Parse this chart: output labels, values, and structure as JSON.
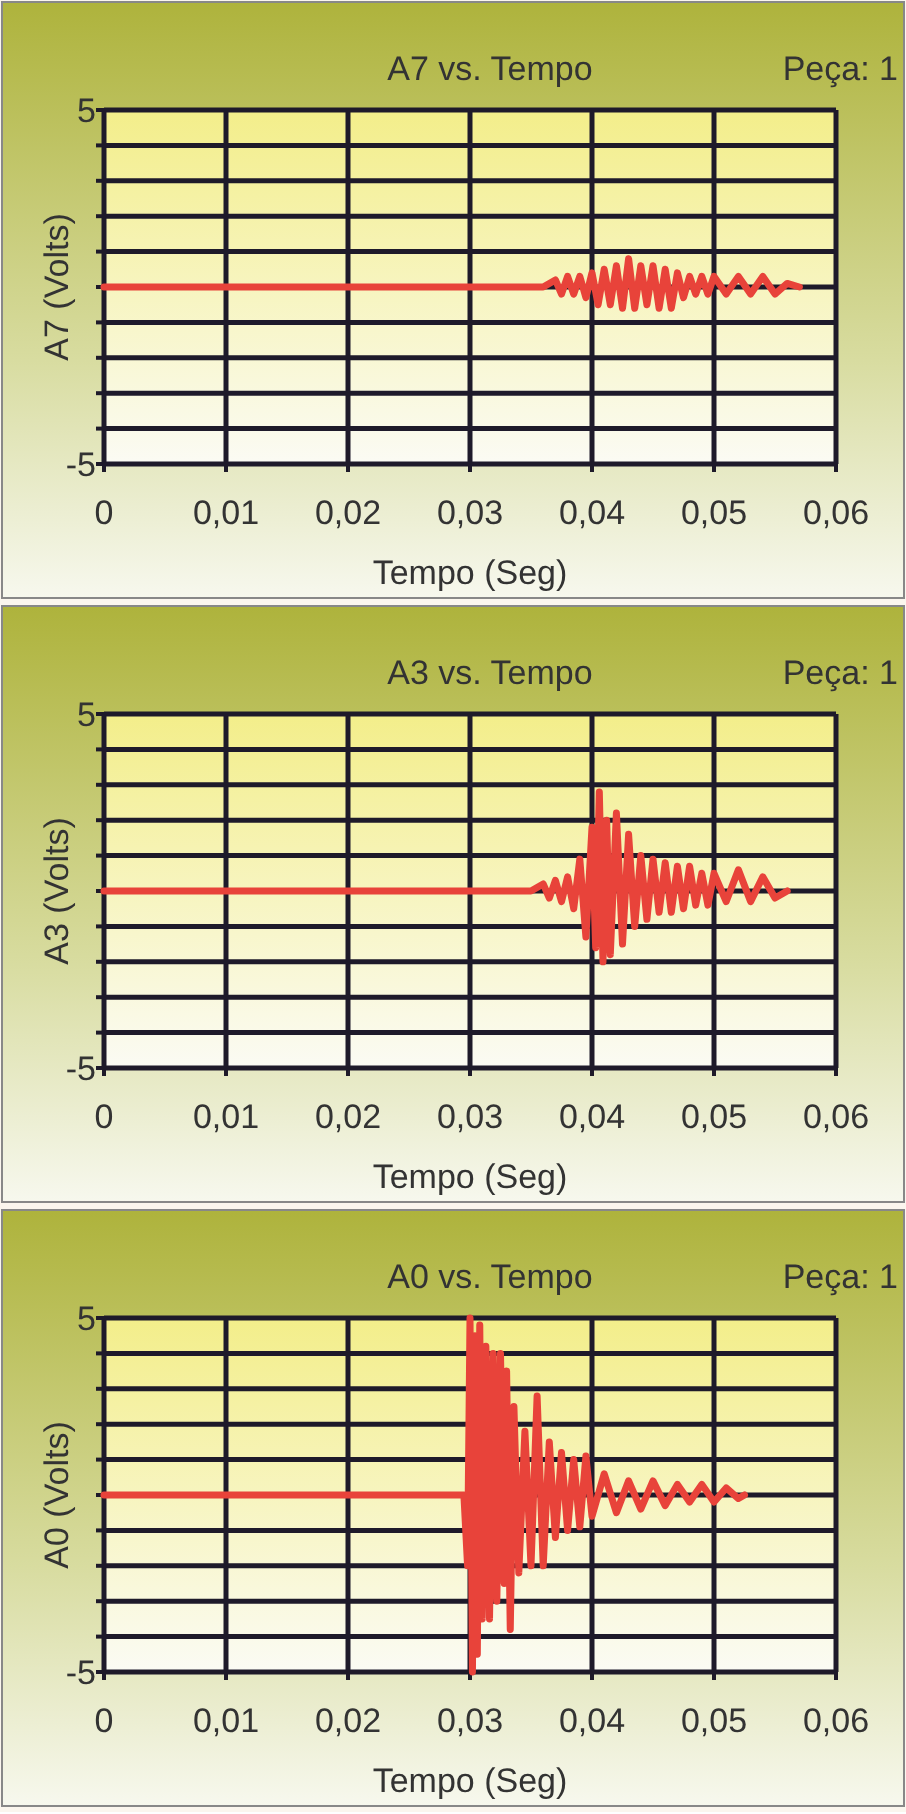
{
  "chart_data": [
    {
      "type": "line",
      "title": "A7 vs. Tempo",
      "annotations": [
        "Peça: 1"
      ],
      "xlabel": "Tempo (Seg)",
      "ylabel": "A7 (Volts)",
      "xlim": [
        0,
        0.06
      ],
      "ylim": [
        -5,
        5
      ],
      "xticks": [
        {
          "value": 0,
          "label": "0"
        },
        {
          "value": 0.01,
          "label": "0,01"
        },
        {
          "value": 0.02,
          "label": "0,02"
        },
        {
          "value": 0.03,
          "label": "0,03"
        },
        {
          "value": 0.04,
          "label": "0,04"
        },
        {
          "value": 0.05,
          "label": "0,05"
        },
        {
          "value": 0.06,
          "label": "0,06"
        }
      ],
      "yticks": [
        {
          "value": -5,
          "label": "-5"
        },
        {
          "value": -4,
          "label": null
        },
        {
          "value": -3,
          "label": null
        },
        {
          "value": -2,
          "label": null
        },
        {
          "value": -1,
          "label": null
        },
        {
          "value": 0,
          "label": null
        },
        {
          "value": 1,
          "label": null
        },
        {
          "value": 2,
          "label": null
        },
        {
          "value": 3,
          "label": null
        },
        {
          "value": 4,
          "label": null
        },
        {
          "value": 5,
          "label": "5"
        }
      ],
      "grid": true,
      "line_style": "solid",
      "marker": "none",
      "series": [
        {
          "color": "#e8433a",
          "x": [
            0,
            0.036,
            0.037,
            0.0375,
            0.038,
            0.0385,
            0.039,
            0.0395,
            0.04,
            0.0405,
            0.041,
            0.0415,
            0.042,
            0.0425,
            0.043,
            0.0435,
            0.044,
            0.0445,
            0.045,
            0.0455,
            0.046,
            0.0465,
            0.047,
            0.0475,
            0.048,
            0.0485,
            0.049,
            0.0495,
            0.05,
            0.051,
            0.052,
            0.053,
            0.054,
            0.055,
            0.056,
            0.057
          ],
          "values": [
            0,
            0,
            0.2,
            -0.2,
            0.3,
            -0.2,
            0.3,
            -0.3,
            0.4,
            -0.5,
            0.5,
            -0.5,
            0.6,
            -0.6,
            0.8,
            -0.6,
            0.6,
            -0.5,
            0.6,
            -0.6,
            0.5,
            -0.6,
            0.4,
            -0.3,
            0.3,
            -0.2,
            0.3,
            -0.2,
            0.3,
            -0.2,
            0.3,
            -0.2,
            0.3,
            -0.2,
            0.1,
            0
          ]
        }
      ]
    },
    {
      "type": "line",
      "title": "A3 vs. Tempo",
      "annotations": [
        "Peça: 1"
      ],
      "xlabel": "Tempo (Seg)",
      "ylabel": "A3 (Volts)",
      "xlim": [
        0,
        0.06
      ],
      "ylim": [
        -5,
        5
      ],
      "xticks": [
        {
          "value": 0,
          "label": "0"
        },
        {
          "value": 0.01,
          "label": "0,01"
        },
        {
          "value": 0.02,
          "label": "0,02"
        },
        {
          "value": 0.03,
          "label": "0,03"
        },
        {
          "value": 0.04,
          "label": "0,04"
        },
        {
          "value": 0.05,
          "label": "0,05"
        },
        {
          "value": 0.06,
          "label": "0,06"
        }
      ],
      "yticks": [
        {
          "value": -5,
          "label": "-5"
        },
        {
          "value": -4,
          "label": null
        },
        {
          "value": -3,
          "label": null
        },
        {
          "value": -2,
          "label": null
        },
        {
          "value": -1,
          "label": null
        },
        {
          "value": 0,
          "label": null
        },
        {
          "value": 1,
          "label": null
        },
        {
          "value": 2,
          "label": null
        },
        {
          "value": 3,
          "label": null
        },
        {
          "value": 4,
          "label": null
        },
        {
          "value": 5,
          "label": "5"
        }
      ],
      "grid": true,
      "line_style": "solid",
      "marker": "none",
      "series": [
        {
          "color": "#e8433a",
          "x": [
            0,
            0.035,
            0.036,
            0.0365,
            0.037,
            0.0375,
            0.038,
            0.0385,
            0.039,
            0.0395,
            0.04,
            0.0403,
            0.0406,
            0.0409,
            0.0412,
            0.0415,
            0.042,
            0.0425,
            0.043,
            0.0435,
            0.044,
            0.0445,
            0.045,
            0.0455,
            0.046,
            0.0465,
            0.047,
            0.0475,
            0.048,
            0.0485,
            0.049,
            0.0495,
            0.05,
            0.051,
            0.052,
            0.053,
            0.054,
            0.055,
            0.056
          ],
          "values": [
            0,
            0,
            0.2,
            -0.2,
            0.3,
            -0.3,
            0.4,
            -0.5,
            0.9,
            -1.3,
            1.8,
            -1.6,
            2.8,
            -2,
            2,
            -1.8,
            2.2,
            -1.5,
            1.6,
            -1,
            1,
            -0.8,
            0.9,
            -0.6,
            0.8,
            -0.6,
            0.7,
            -0.5,
            0.7,
            -0.4,
            0.5,
            -0.4,
            0.5,
            -0.3,
            0.6,
            -0.3,
            0.4,
            -0.2,
            0
          ]
        }
      ]
    },
    {
      "type": "line",
      "title": "A0 vs. Tempo",
      "annotations": [
        "Peça: 1"
      ],
      "xlabel": "Tempo (Seg)",
      "ylabel": "A0 (Volts)",
      "xlim": [
        0,
        0.06
      ],
      "ylim": [
        -5,
        5
      ],
      "xticks": [
        {
          "value": 0,
          "label": "0"
        },
        {
          "value": 0.01,
          "label": "0,01"
        },
        {
          "value": 0.02,
          "label": "0,02"
        },
        {
          "value": 0.03,
          "label": "0,03"
        },
        {
          "value": 0.04,
          "label": "0,04"
        },
        {
          "value": 0.05,
          "label": "0,05"
        },
        {
          "value": 0.06,
          "label": "0,06"
        }
      ],
      "yticks": [
        {
          "value": -5,
          "label": "-5"
        },
        {
          "value": -4,
          "label": null
        },
        {
          "value": -3,
          "label": null
        },
        {
          "value": -2,
          "label": null
        },
        {
          "value": -1,
          "label": null
        },
        {
          "value": 0,
          "label": null
        },
        {
          "value": 1,
          "label": null
        },
        {
          "value": 2,
          "label": null
        },
        {
          "value": 3,
          "label": null
        },
        {
          "value": 4,
          "label": null
        },
        {
          "value": 5,
          "label": "5"
        }
      ],
      "grid": true,
      "line_style": "solid",
      "marker": "none",
      "series": [
        {
          "color": "#e8433a",
          "x": [
            0,
            0.0295,
            0.0298,
            0.03,
            0.0302,
            0.0304,
            0.0306,
            0.0308,
            0.031,
            0.0313,
            0.0316,
            0.0319,
            0.0322,
            0.0325,
            0.0328,
            0.033,
            0.0333,
            0.0336,
            0.034,
            0.0345,
            0.035,
            0.0355,
            0.036,
            0.0365,
            0.037,
            0.0375,
            0.038,
            0.0385,
            0.039,
            0.0395,
            0.04,
            0.041,
            0.042,
            0.043,
            0.044,
            0.045,
            0.046,
            0.047,
            0.048,
            0.049,
            0.05,
            0.051,
            0.052,
            0.0525
          ],
          "values": [
            0,
            0,
            -2,
            5,
            -5,
            4.5,
            -4.5,
            4.8,
            -3.5,
            4.2,
            -3.5,
            4,
            -3,
            4,
            -2.5,
            3.5,
            -3.8,
            2.5,
            -2.2,
            1.8,
            -2,
            2.8,
            -2,
            1.5,
            -1.2,
            1.2,
            -1,
            1,
            -0.9,
            1.1,
            -0.6,
            0.6,
            -0.5,
            0.4,
            -0.4,
            0.4,
            -0.3,
            0.3,
            -0.2,
            0.3,
            -0.2,
            0.2,
            -0.1,
            0
          ]
        }
      ]
    }
  ]
}
